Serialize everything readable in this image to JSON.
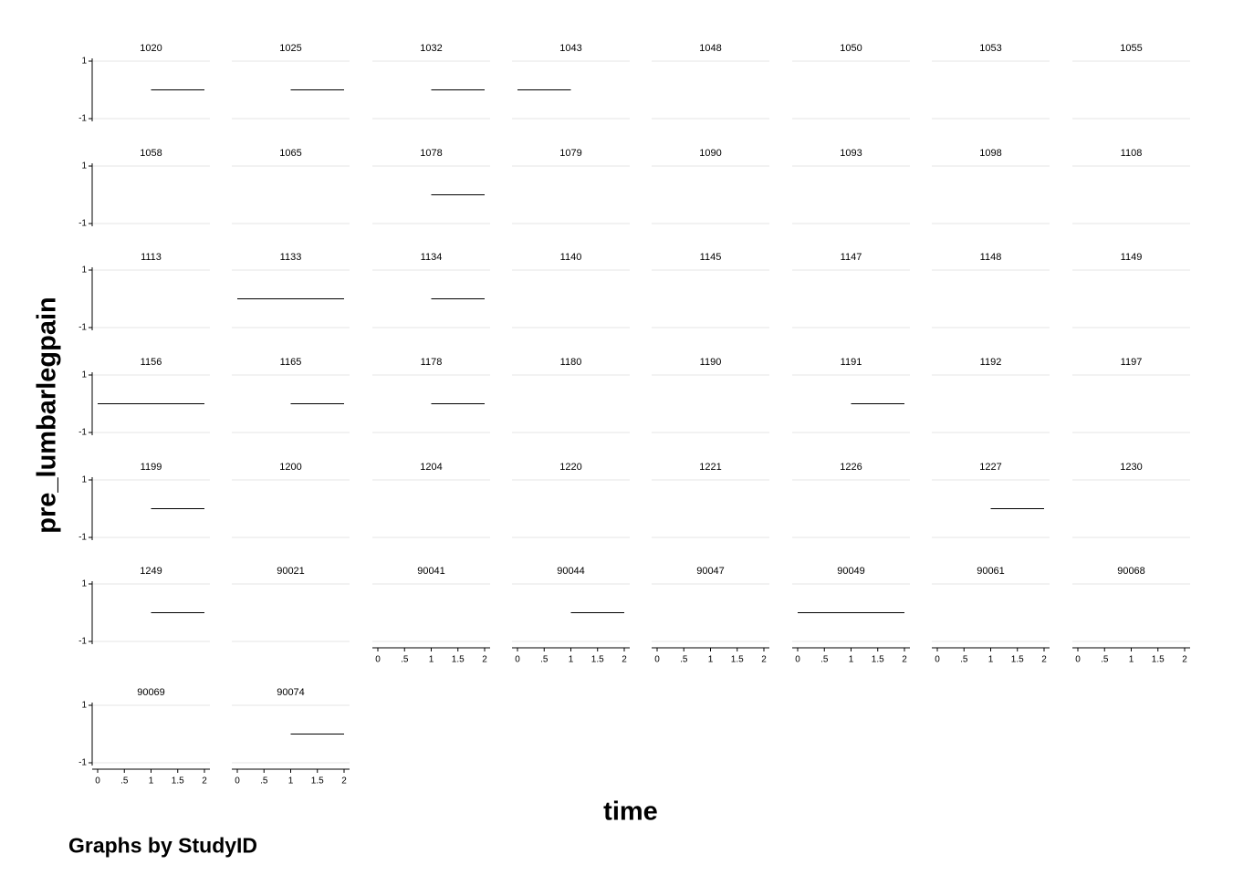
{
  "chart_data": {
    "type": "line",
    "layout": "small-multiples",
    "ylabel": "pre_lumbarlegpain",
    "xlabel": "time",
    "note": "Graphs by StudyID",
    "xlim": [
      0,
      2
    ],
    "ylim": [
      -1,
      1
    ],
    "x_ticks": [
      "0",
      ".5",
      "1",
      "1.5",
      "2"
    ],
    "y_ticks": [
      "1",
      "-1"
    ],
    "grid": true,
    "legend": "none",
    "panels": [
      {
        "id": "1020",
        "x": [
          1,
          2
        ],
        "y": [
          0,
          0
        ]
      },
      {
        "id": "1025",
        "x": [
          1,
          2
        ],
        "y": [
          0,
          0
        ]
      },
      {
        "id": "1032",
        "x": [
          1,
          2
        ],
        "y": [
          0,
          0
        ]
      },
      {
        "id": "1043",
        "x": [
          0,
          1
        ],
        "y": [
          0,
          0
        ]
      },
      {
        "id": "1048",
        "x": [],
        "y": []
      },
      {
        "id": "1050",
        "x": [],
        "y": []
      },
      {
        "id": "1053",
        "x": [],
        "y": []
      },
      {
        "id": "1055",
        "x": [],
        "y": []
      },
      {
        "id": "1058",
        "x": [],
        "y": []
      },
      {
        "id": "1065",
        "x": [],
        "y": []
      },
      {
        "id": "1078",
        "x": [
          1,
          2
        ],
        "y": [
          0,
          0
        ]
      },
      {
        "id": "1079",
        "x": [],
        "y": []
      },
      {
        "id": "1090",
        "x": [],
        "y": []
      },
      {
        "id": "1093",
        "x": [],
        "y": []
      },
      {
        "id": "1098",
        "x": [],
        "y": []
      },
      {
        "id": "1108",
        "x": [],
        "y": []
      },
      {
        "id": "1113",
        "x": [],
        "y": []
      },
      {
        "id": "1133",
        "x": [
          0,
          1,
          2
        ],
        "y": [
          0,
          0,
          0
        ]
      },
      {
        "id": "1134",
        "x": [
          1,
          2
        ],
        "y": [
          0,
          0
        ]
      },
      {
        "id": "1140",
        "x": [],
        "y": []
      },
      {
        "id": "1145",
        "x": [],
        "y": []
      },
      {
        "id": "1147",
        "x": [],
        "y": []
      },
      {
        "id": "1148",
        "x": [],
        "y": []
      },
      {
        "id": "1149",
        "x": [],
        "y": []
      },
      {
        "id": "1156",
        "x": [
          0,
          1,
          2
        ],
        "y": [
          0,
          0,
          0
        ]
      },
      {
        "id": "1165",
        "x": [
          1,
          2
        ],
        "y": [
          0,
          0
        ]
      },
      {
        "id": "1178",
        "x": [
          1,
          2
        ],
        "y": [
          0,
          0
        ]
      },
      {
        "id": "1180",
        "x": [],
        "y": []
      },
      {
        "id": "1190",
        "x": [],
        "y": []
      },
      {
        "id": "1191",
        "x": [
          1,
          2
        ],
        "y": [
          0,
          0
        ]
      },
      {
        "id": "1192",
        "x": [],
        "y": []
      },
      {
        "id": "1197",
        "x": [],
        "y": []
      },
      {
        "id": "1199",
        "x": [
          1,
          2
        ],
        "y": [
          0,
          0
        ]
      },
      {
        "id": "1200",
        "x": [],
        "y": []
      },
      {
        "id": "1204",
        "x": [],
        "y": []
      },
      {
        "id": "1220",
        "x": [],
        "y": []
      },
      {
        "id": "1221",
        "x": [],
        "y": []
      },
      {
        "id": "1226",
        "x": [],
        "y": []
      },
      {
        "id": "1227",
        "x": [
          1,
          2
        ],
        "y": [
          0,
          0
        ]
      },
      {
        "id": "1230",
        "x": [],
        "y": []
      },
      {
        "id": "1249",
        "x": [
          1,
          2
        ],
        "y": [
          0,
          0
        ]
      },
      {
        "id": "90021",
        "x": [],
        "y": []
      },
      {
        "id": "90041",
        "x": [],
        "y": []
      },
      {
        "id": "90044",
        "x": [
          1,
          2
        ],
        "y": [
          0,
          0
        ]
      },
      {
        "id": "90047",
        "x": [],
        "y": []
      },
      {
        "id": "90049",
        "x": [
          0,
          1,
          2
        ],
        "y": [
          0,
          0,
          0
        ]
      },
      {
        "id": "90061",
        "x": [],
        "y": []
      },
      {
        "id": "90068",
        "x": [],
        "y": []
      },
      {
        "id": "90069",
        "x": [],
        "y": []
      },
      {
        "id": "90074",
        "x": [
          1,
          2
        ],
        "y": [
          0,
          0
        ]
      }
    ]
  }
}
